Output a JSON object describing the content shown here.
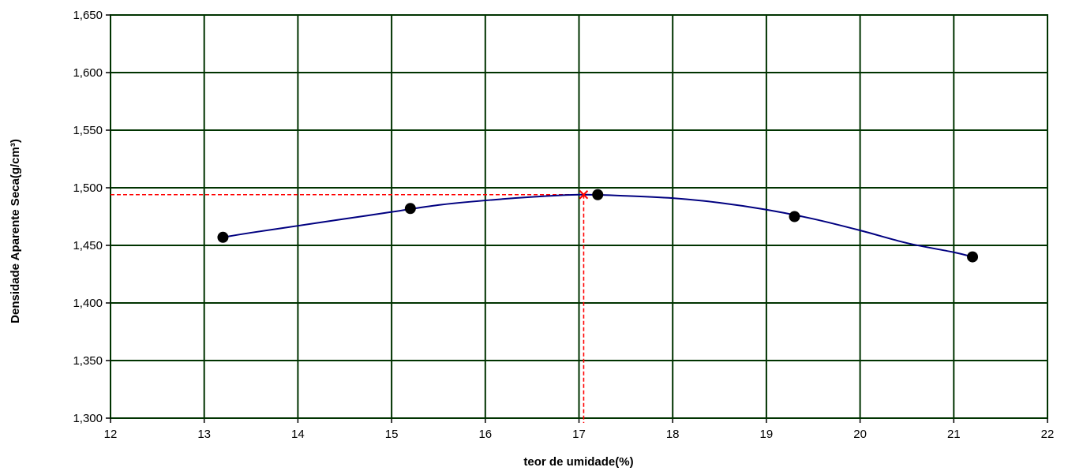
{
  "chart_data": {
    "type": "scatter",
    "title": "",
    "xlabel": "teor de umidade(%)",
    "ylabel": "Densidade Aparente Seca(g/cm³)",
    "xlim": [
      12,
      22
    ],
    "ylim": [
      1.3,
      1.65
    ],
    "x_ticks": [
      12,
      13,
      14,
      15,
      16,
      17,
      18,
      19,
      20,
      21,
      22
    ],
    "x_tick_labels": [
      "12",
      "13",
      "14",
      "15",
      "16",
      "17",
      "18",
      "19",
      "20",
      "21",
      "22"
    ],
    "y_ticks": [
      1.3,
      1.35,
      1.4,
      1.45,
      1.5,
      1.55,
      1.6,
      1.65
    ],
    "y_tick_labels": [
      "1,300",
      "1,350",
      "1,400",
      "1,450",
      "1,500",
      "1,550",
      "1,600",
      "1,650"
    ],
    "grid": true,
    "series": [
      {
        "kind": "points",
        "x": [
          13.2,
          15.2,
          17.2,
          19.3,
          21.2
        ],
        "y": [
          1.457,
          1.482,
          1.494,
          1.475,
          1.44
        ],
        "color": "#000000"
      },
      {
        "kind": "fitted-curve",
        "x": [
          13.2,
          13.5,
          14.0,
          14.5,
          15.0,
          15.5,
          16.0,
          16.5,
          17.0,
          17.5,
          18.0,
          18.5,
          19.0,
          19.5,
          20.0,
          20.5,
          21.0,
          21.2
        ],
        "y": [
          1.457,
          1.461,
          1.467,
          1.473,
          1.479,
          1.485,
          1.489,
          1.492,
          1.494,
          1.493,
          1.491,
          1.487,
          1.481,
          1.473,
          1.463,
          1.452,
          1.444,
          1.44
        ],
        "color": "#000080"
      },
      {
        "kind": "optimum-marker",
        "x": [
          17.05
        ],
        "y": [
          1.494
        ],
        "color": "#ff0000"
      }
    ],
    "colors": {
      "grid": "#003300",
      "curve": "#000080",
      "points": "#000000",
      "optimum": "#ff0000"
    }
  }
}
